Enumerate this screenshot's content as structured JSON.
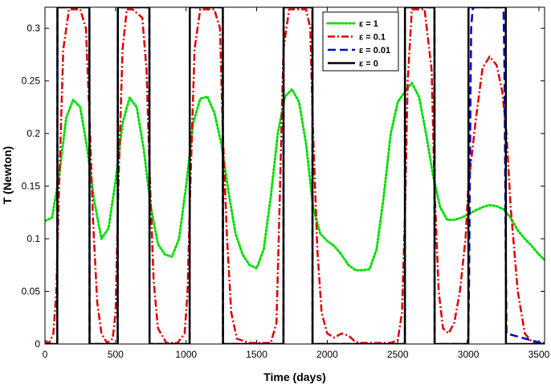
{
  "chart_data": {
    "type": "line",
    "xlabel": "Time (days)",
    "ylabel": "T (Newton)",
    "xlim": [
      0,
      3540
    ],
    "ylim": [
      0,
      0.32
    ],
    "xticks": [
      0,
      500,
      1000,
      1500,
      2000,
      2500,
      3000,
      3500
    ],
    "xtick_labels": [
      "0",
      "500",
      "1000",
      "1500",
      "2000",
      "2500",
      "3000",
      "3500"
    ],
    "yticks": [
      0,
      0.05,
      0.1,
      0.15,
      0.2,
      0.25,
      0.3
    ],
    "ytick_labels": [
      "0",
      "0.05",
      "0.1",
      "0.15",
      "0.2",
      "0.25",
      "0.3"
    ],
    "grid": false,
    "legend": "top-right",
    "series": [
      {
        "name": "ε = 1",
        "color": "#00dd00",
        "style": "dotted",
        "x": [
          0,
          50,
          100,
          150,
          200,
          250,
          300,
          350,
          400,
          450,
          500,
          550,
          600,
          650,
          700,
          750,
          800,
          850,
          900,
          950,
          1000,
          1050,
          1100,
          1150,
          1200,
          1250,
          1300,
          1350,
          1400,
          1450,
          1500,
          1550,
          1600,
          1650,
          1700,
          1750,
          1800,
          1850,
          1900,
          1950,
          2000,
          2050,
          2100,
          2150,
          2200,
          2250,
          2300,
          2350,
          2400,
          2450,
          2500,
          2550,
          2600,
          2650,
          2700,
          2750,
          2800,
          2850,
          2900,
          2950,
          3000,
          3050,
          3100,
          3150,
          3200,
          3250,
          3300,
          3350,
          3400,
          3450,
          3500,
          3540
        ],
        "values": [
          0.117,
          0.12,
          0.16,
          0.215,
          0.232,
          0.225,
          0.185,
          0.135,
          0.1,
          0.11,
          0.155,
          0.21,
          0.234,
          0.225,
          0.185,
          0.13,
          0.095,
          0.085,
          0.083,
          0.1,
          0.15,
          0.21,
          0.233,
          0.235,
          0.22,
          0.19,
          0.145,
          0.105,
          0.085,
          0.075,
          0.072,
          0.09,
          0.14,
          0.2,
          0.235,
          0.242,
          0.23,
          0.19,
          0.13,
          0.105,
          0.098,
          0.093,
          0.085,
          0.075,
          0.07,
          0.07,
          0.071,
          0.09,
          0.14,
          0.2,
          0.23,
          0.24,
          0.248,
          0.235,
          0.2,
          0.16,
          0.13,
          0.118,
          0.118,
          0.12,
          0.123,
          0.127,
          0.13,
          0.132,
          0.131,
          0.128,
          0.12,
          0.108,
          0.1,
          0.093,
          0.085,
          0.08
        ]
      },
      {
        "name": "ε = 0.1",
        "color": "#dd0000",
        "style": "dash-dot",
        "x": [
          0,
          30,
          60,
          80,
          100,
          130,
          170,
          250,
          290,
          320,
          340,
          370,
          400,
          440,
          480,
          500,
          520,
          550,
          580,
          620,
          690,
          720,
          740,
          770,
          800,
          860,
          940,
          990,
          1010,
          1030,
          1060,
          1100,
          1200,
          1240,
          1260,
          1290,
          1320,
          1360,
          1450,
          1600,
          1640,
          1660,
          1690,
          1730,
          1850,
          1880,
          1900,
          1930,
          1960,
          2000,
          2050,
          2100,
          2150,
          2200,
          2250,
          2300,
          2350,
          2400,
          2450,
          2500,
          2530,
          2550,
          2570,
          2600,
          2690,
          2740,
          2760,
          2790,
          2820,
          2860,
          2900,
          2940,
          2980,
          3000,
          3050,
          3100,
          3150,
          3200,
          3240,
          3270,
          3300,
          3350,
          3400,
          3450,
          3540
        ],
        "values": [
          0.003,
          0.001,
          0.01,
          0.05,
          0.15,
          0.28,
          0.318,
          0.318,
          0.3,
          0.2,
          0.12,
          0.04,
          0.01,
          0.001,
          0.005,
          0.03,
          0.15,
          0.28,
          0.318,
          0.318,
          0.31,
          0.26,
          0.17,
          0.06,
          0.015,
          0.001,
          0.001,
          0.01,
          0.05,
          0.15,
          0.28,
          0.318,
          0.318,
          0.3,
          0.2,
          0.1,
          0.03,
          0.005,
          0.001,
          0.001,
          0.02,
          0.12,
          0.28,
          0.318,
          0.318,
          0.3,
          0.2,
          0.09,
          0.03,
          0.01,
          0.006,
          0.01,
          0.008,
          0.002,
          0.001,
          0.001,
          0.001,
          0.001,
          0.001,
          0.004,
          0.03,
          0.12,
          0.25,
          0.318,
          0.318,
          0.26,
          0.15,
          0.05,
          0.015,
          0.01,
          0.02,
          0.05,
          0.1,
          0.15,
          0.21,
          0.262,
          0.273,
          0.265,
          0.24,
          0.2,
          0.13,
          0.05,
          0.01,
          0.002,
          0.001
        ]
      },
      {
        "name": "ε = 0.01",
        "color": "#0000cc",
        "style": "dashed",
        "x": [
          0,
          87,
          88,
          315,
          316,
          515,
          516,
          740,
          741,
          1025,
          1026,
          1260,
          1261,
          1690,
          1691,
          1895,
          1896,
          2550,
          2551,
          2760,
          2761,
          2995,
          3000,
          3005,
          3010,
          3015,
          3020,
          3030,
          3040,
          3240,
          3250,
          3255,
          3260,
          3265,
          3270,
          3540
        ],
        "values": [
          0,
          0,
          0.32,
          0.32,
          0,
          0,
          0.32,
          0.32,
          0,
          0,
          0.32,
          0.32,
          0,
          0,
          0.32,
          0.32,
          0,
          0,
          0.32,
          0.32,
          0,
          0,
          0.01,
          0.06,
          0.15,
          0.24,
          0.3,
          0.318,
          0.32,
          0.32,
          0.315,
          0.27,
          0.18,
          0.08,
          0.01,
          0
        ]
      },
      {
        "name": "ε = 0",
        "color": "#000000",
        "style": "solid",
        "x": [
          0,
          87,
          88,
          315,
          316,
          515,
          516,
          740,
          741,
          1025,
          1026,
          1260,
          1261,
          1690,
          1691,
          1895,
          1896,
          2550,
          2551,
          2760,
          2761,
          3000,
          3001,
          3265,
          3266,
          3540
        ],
        "values": [
          0,
          0,
          0.32,
          0.32,
          0,
          0,
          0.32,
          0.32,
          0,
          0,
          0.32,
          0.32,
          0,
          0,
          0.32,
          0.32,
          0,
          0,
          0.32,
          0.32,
          0,
          0,
          0.32,
          0.32,
          0,
          0
        ]
      }
    ]
  }
}
